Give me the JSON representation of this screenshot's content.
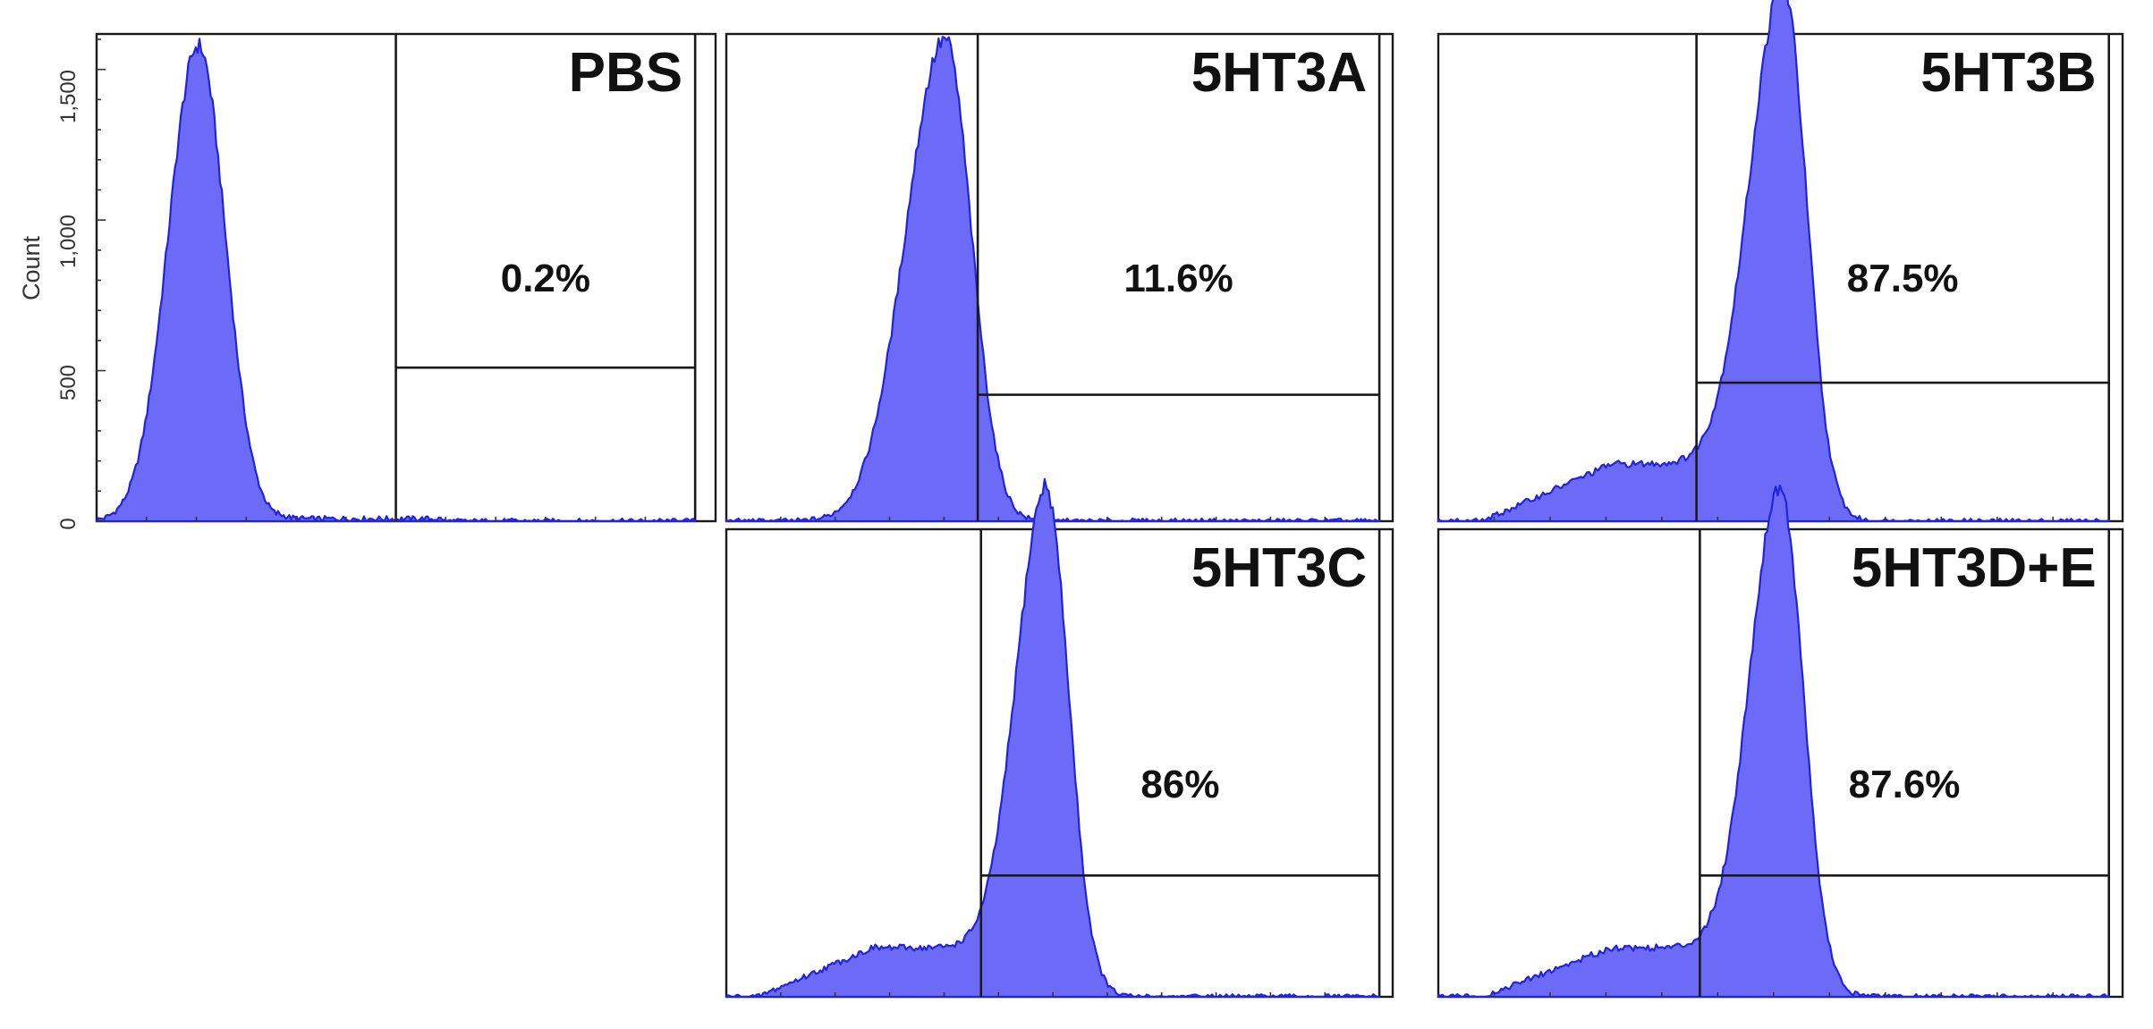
{
  "colors": {
    "histogram_fill": "#6b6bf7",
    "histogram_line": "#2323d8",
    "frame": "#1a1a1a"
  },
  "chart_data": [
    {
      "type": "histogram",
      "title": "PBS",
      "ylabel": "Count",
      "yticks": [
        "0",
        "500",
        "1,000",
        "1,500"
      ],
      "ylim": [
        0,
        1600
      ],
      "gate_percent": "0.2%",
      "gate_start": 0.5,
      "gate_threshold": 510,
      "peak": {
        "center": 0.17,
        "height": 1580,
        "width_left": 0.05,
        "width_right": 0.045
      },
      "shoulder": null
    },
    {
      "type": "histogram",
      "title": "5HT3A",
      "gate_percent": "11.6%",
      "gate_start": 0.385,
      "gate_threshold": 420,
      "peak": {
        "center": 0.335,
        "height": 1600,
        "width_left": 0.06,
        "width_right": 0.04
      },
      "shoulder": null
    },
    {
      "type": "histogram",
      "title": "5HT3B",
      "gate_percent": "87.5%",
      "gate_start": 0.385,
      "gate_threshold": 460,
      "peak": {
        "center": 0.515,
        "height": 1600,
        "width_left": 0.05,
        "width_right": 0.035
      },
      "shoulder": {
        "center": 0.33,
        "height": 190,
        "width": 0.12
      }
    },
    {
      "type": "histogram",
      "title": "5HT3C",
      "gate_percent": "86%",
      "gate_start": 0.39,
      "gate_threshold": 420,
      "peak": {
        "center": 0.49,
        "height": 1600,
        "width_left": 0.045,
        "width_right": 0.035
      },
      "shoulder": {
        "center": 0.29,
        "height": 170,
        "width": 0.11
      }
    },
    {
      "type": "histogram",
      "title": "5HT3D+E",
      "gate_percent": "87.6%",
      "gate_start": 0.39,
      "gate_threshold": 420,
      "peak": {
        "center": 0.51,
        "height": 1600,
        "width_left": 0.045,
        "width_right": 0.035
      },
      "shoulder": {
        "center": 0.33,
        "height": 170,
        "width": 0.12
      }
    }
  ]
}
